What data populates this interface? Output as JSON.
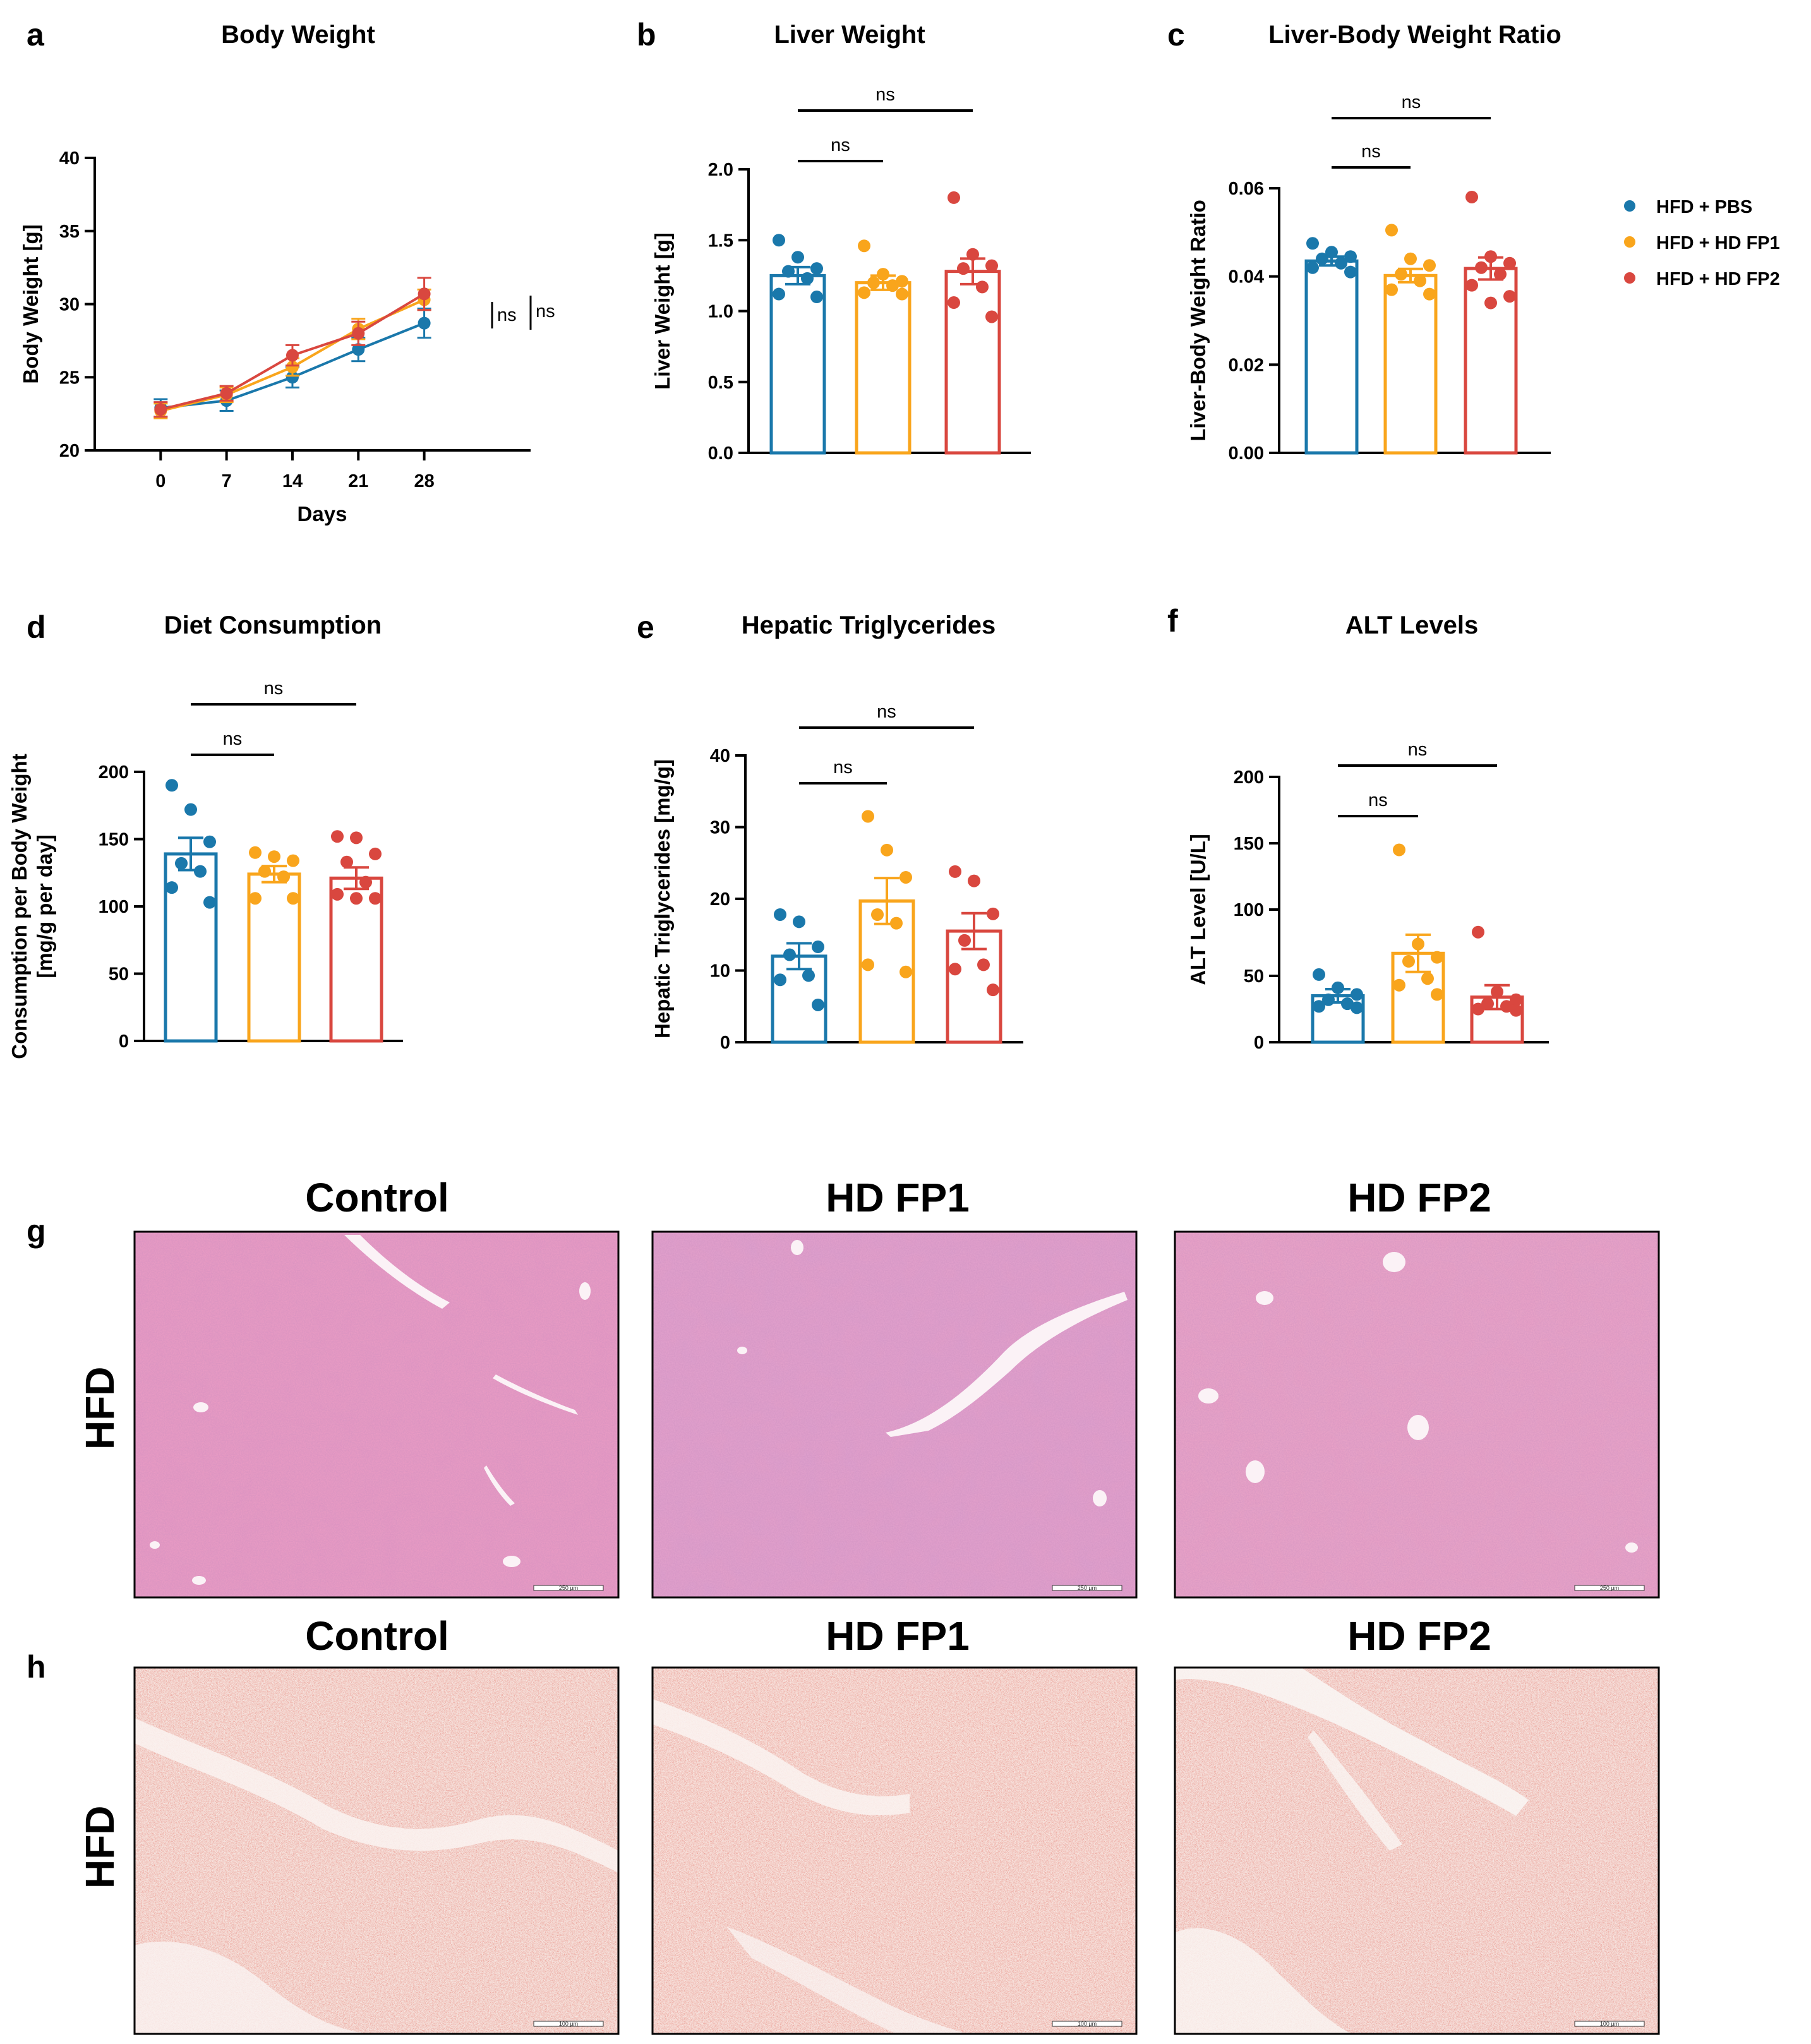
{
  "legend": {
    "items": [
      {
        "label": "HFD + PBS",
        "color": "#1a78ab"
      },
      {
        "label": "HFD + HD FP1",
        "color": "#f9a51c"
      },
      {
        "label": "HFD + HD FP2",
        "color": "#d9473f"
      }
    ]
  },
  "chart_data": [
    {
      "panel": "a",
      "type": "line",
      "title": "Body Weight",
      "xlabel": "Days",
      "ylabel": "Body Weight [g]",
      "x": [
        0,
        7,
        14,
        21,
        28
      ],
      "xticks": [
        "0",
        "7",
        "14",
        "21",
        "28"
      ],
      "ylim": [
        20,
        40
      ],
      "yticks": [
        "20",
        "25",
        "30",
        "35",
        "40"
      ],
      "series": [
        {
          "name": "HFD + PBS",
          "color": "#1a78ab",
          "values": [
            22.9,
            23.4,
            25.0,
            26.9,
            28.7
          ],
          "err": [
            0.6,
            0.7,
            0.7,
            0.8,
            1.0
          ]
        },
        {
          "name": "HFD + HD FP1",
          "color": "#f9a51c",
          "values": [
            22.7,
            23.8,
            25.7,
            28.3,
            30.3
          ],
          "err": [
            0.5,
            0.5,
            0.6,
            0.7,
            0.7
          ]
        },
        {
          "name": "HFD + HD FP2",
          "color": "#d9473f",
          "values": [
            22.8,
            23.9,
            26.5,
            28.0,
            30.7
          ],
          "err": [
            0.5,
            0.5,
            0.7,
            0.8,
            1.1
          ]
        }
      ],
      "annotations": [
        "ns",
        "ns"
      ]
    },
    {
      "panel": "b",
      "type": "bar",
      "title": "Liver Weight",
      "ylabel": "Liver Weight [g]",
      "categories": [
        "HFD + PBS",
        "HFD + HD FP1",
        "HFD + HD FP2"
      ],
      "ylim": [
        0,
        2.0
      ],
      "yticks": [
        "0.0",
        "0.5",
        "1.0",
        "1.5",
        "2.0"
      ],
      "values": [
        1.25,
        1.2,
        1.28
      ],
      "err": [
        0.06,
        0.05,
        0.09
      ],
      "points": [
        [
          1.5,
          1.38,
          1.3,
          1.28,
          1.23,
          1.12,
          1.1
        ],
        [
          1.46,
          1.26,
          1.21,
          1.2,
          1.18,
          1.13,
          1.12
        ],
        [
          1.8,
          1.4,
          1.32,
          1.3,
          1.17,
          1.06,
          0.96
        ]
      ],
      "comparisons": [
        "ns",
        "ns"
      ]
    },
    {
      "panel": "c",
      "type": "bar",
      "title": "Liver-Body Weight Ratio",
      "ylabel": "Liver-Body Weight Ratio",
      "categories": [
        "HFD + PBS",
        "HFD + HD FP1",
        "HFD + HD FP2"
      ],
      "ylim": [
        0,
        0.06
      ],
      "yticks": [
        "0.00",
        "0.02",
        "0.04",
        "0.06"
      ],
      "values": [
        0.0435,
        0.0402,
        0.0418
      ],
      "err": [
        0.001,
        0.0015,
        0.0025
      ],
      "points": [
        [
          0.0475,
          0.0455,
          0.0445,
          0.044,
          0.043,
          0.042,
          0.041
        ],
        [
          0.0505,
          0.044,
          0.0425,
          0.0405,
          0.039,
          0.037,
          0.036
        ],
        [
          0.058,
          0.0445,
          0.043,
          0.042,
          0.0405,
          0.038,
          0.0355,
          0.034
        ]
      ],
      "comparisons": [
        "ns",
        "ns"
      ]
    },
    {
      "panel": "d",
      "type": "bar",
      "title": "Diet Consumption",
      "ylabel": "Consumption per Body Weight\n[mg/g per day]",
      "categories": [
        "HFD + PBS",
        "HFD + HD FP1",
        "HFD + HD FP2"
      ],
      "ylim": [
        0,
        200
      ],
      "yticks": [
        "0",
        "50",
        "100",
        "150",
        "200"
      ],
      "values": [
        139,
        124,
        121
      ],
      "err": [
        12,
        6,
        8
      ],
      "points": [
        [
          190,
          172,
          148,
          132,
          126,
          114,
          103
        ],
        [
          140,
          137,
          134,
          126,
          122,
          106,
          106
        ],
        [
          152,
          151,
          139,
          133,
          118,
          109,
          106,
          106
        ]
      ],
      "comparisons": [
        "ns",
        "ns"
      ]
    },
    {
      "panel": "e",
      "type": "bar",
      "title": "Hepatic Triglycerides",
      "ylabel": "Hepatic Triglycerides [mg/g]",
      "categories": [
        "HFD + PBS",
        "HFD + HD FP1",
        "HFD + HD FP2"
      ],
      "ylim": [
        0,
        40
      ],
      "yticks": [
        "0",
        "10",
        "20",
        "30",
        "40"
      ],
      "values": [
        12.0,
        19.7,
        15.5
      ],
      "err": [
        1.8,
        3.2,
        2.5
      ],
      "points": [
        [
          17.8,
          16.8,
          13.3,
          12.2,
          9.3,
          8.7,
          5.2
        ],
        [
          31.5,
          26.8,
          23.0,
          17.8,
          16.6,
          10.8,
          9.8
        ],
        [
          23.8,
          22.5,
          17.9,
          14.2,
          10.8,
          10.2,
          7.3
        ]
      ],
      "comparisons": [
        "ns",
        "ns"
      ]
    },
    {
      "panel": "f",
      "type": "bar",
      "title": "ALT Levels",
      "ylabel": "ALT Level [U/L]",
      "categories": [
        "HFD + PBS",
        "HFD + HD FP1",
        "HFD + HD FP2"
      ],
      "ylim": [
        0,
        200
      ],
      "yticks": [
        "0",
        "50",
        "100",
        "150",
        "200"
      ],
      "values": [
        35,
        67,
        34
      ],
      "err": [
        5,
        14,
        9
      ],
      "points": [
        [
          51,
          41,
          36,
          32,
          29,
          27,
          26
        ],
        [
          145,
          74,
          64,
          61,
          48,
          43,
          36
        ],
        [
          83,
          38,
          32,
          29,
          27,
          25,
          24
        ]
      ],
      "comparisons": [
        "ns",
        "ns"
      ]
    }
  ],
  "panels": {
    "a": "a",
    "b": "b",
    "c": "c",
    "d": "d",
    "e": "e",
    "f": "f",
    "g": "g",
    "h": "h"
  },
  "micrographs": {
    "row_g": {
      "label": "HFD",
      "titles": [
        "Control",
        "HD FP1",
        "HD FP2"
      ],
      "scale_bar": "250 µm"
    },
    "row_h": {
      "label": "HFD",
      "titles": [
        "Control",
        "HD FP1",
        "HD FP2"
      ],
      "scale_bar": "100 µm"
    }
  }
}
